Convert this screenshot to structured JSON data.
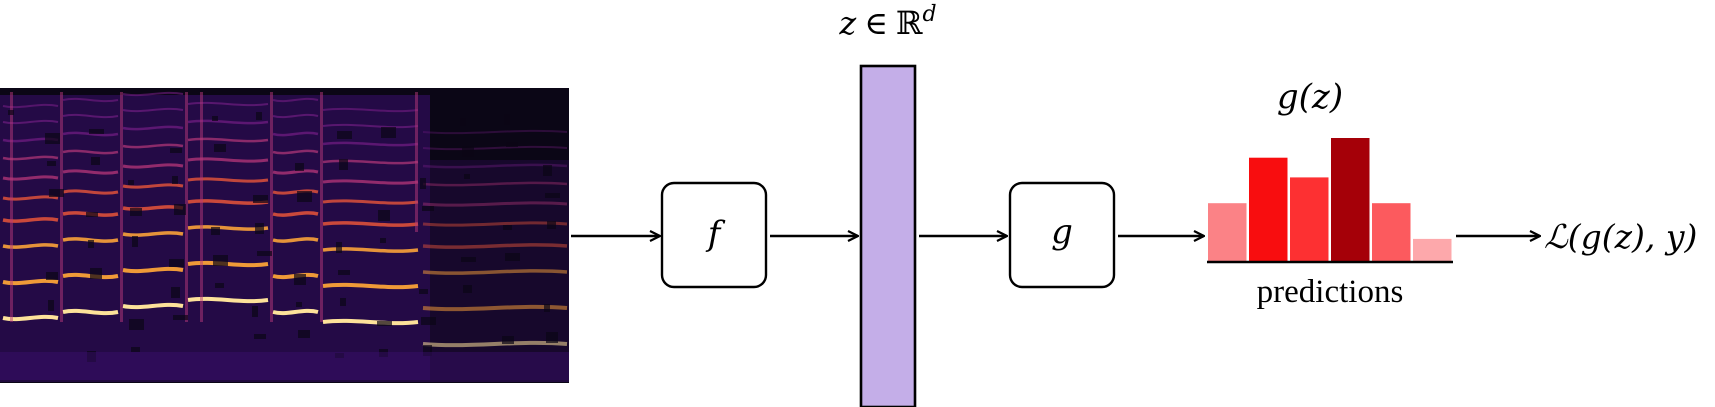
{
  "spectrogram": {
    "background": "#0b0616",
    "palette": [
      "#0b0616",
      "#3b0f6f",
      "#7b1f8a",
      "#b73779",
      "#e8553a",
      "#fba238",
      "#fde29a",
      "#fff6d8"
    ]
  },
  "encoder": {
    "label": "f"
  },
  "embedding": {
    "label_var": "z",
    "label_in": "∈",
    "label_set": "ℝ",
    "label_sup": "d",
    "fill": "#c4aee8"
  },
  "head": {
    "label": "g"
  },
  "predictions": {
    "title": "g(z)",
    "caption": "predictions",
    "bar_heights": [
      0.47,
      0.84,
      0.68,
      1.0,
      0.47,
      0.18
    ],
    "bar_colors": [
      "#fb8286",
      "#f80d0f",
      "#fd3032",
      "#a50008",
      "#fc5a5e",
      "#fda8ab"
    ]
  },
  "loss": {
    "label": "ℒ(g(z), y)"
  }
}
